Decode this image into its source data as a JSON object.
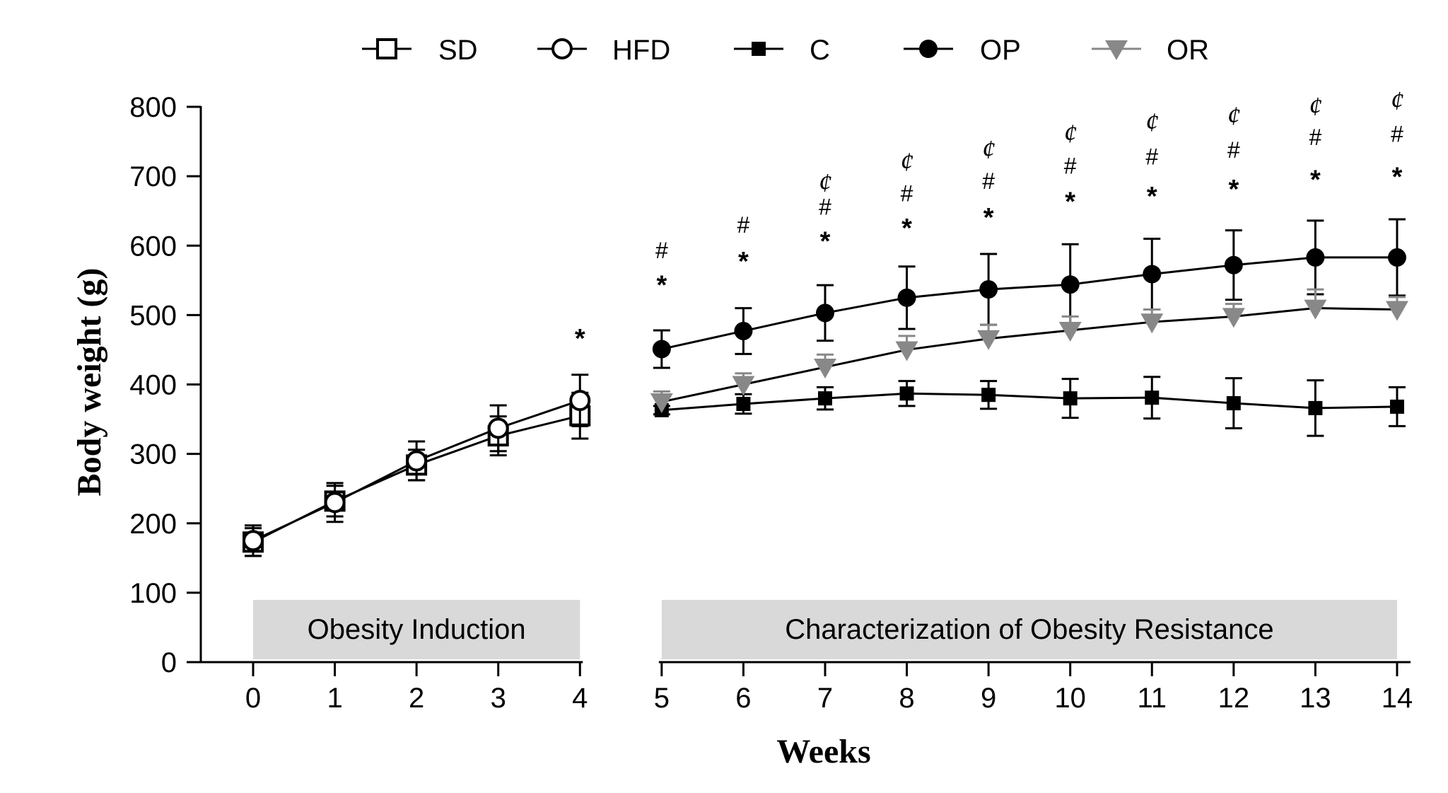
{
  "chart_data": {
    "type": "line",
    "xlabel": "Weeks",
    "ylabel": "Body weight (g)",
    "ylim": [
      0,
      800
    ],
    "yticks": [
      0,
      100,
      200,
      300,
      400,
      500,
      600,
      700,
      800
    ],
    "xticks": [
      0,
      1,
      2,
      3,
      4,
      5,
      6,
      7,
      8,
      9,
      10,
      11,
      12,
      13,
      14
    ],
    "bands": [
      {
        "label": "Obesity Induction",
        "from": 0,
        "to": 4
      },
      {
        "label": "Characterization of Obesity Resistance",
        "from": 5,
        "to": 14
      }
    ],
    "series": [
      {
        "name": "SD",
        "marker": "open-square",
        "color": "#000000",
        "x": [
          0,
          1,
          2,
          3,
          4
        ],
        "values": [
          173,
          232,
          284,
          326,
          355
        ],
        "err": [
          20,
          22,
          22,
          28,
          33
        ]
      },
      {
        "name": "HFD",
        "marker": "open-circle",
        "color": "#000000",
        "x": [
          0,
          1,
          2,
          3,
          4
        ],
        "values": [
          175,
          230,
          290,
          337,
          377
        ],
        "err": [
          22,
          28,
          28,
          33,
          37
        ]
      },
      {
        "name": "C",
        "marker": "filled-square",
        "color": "#000000",
        "x": [
          5,
          6,
          7,
          8,
          9,
          10,
          11,
          12,
          13,
          14
        ],
        "values": [
          363,
          372,
          380,
          387,
          385,
          380,
          381,
          373,
          366,
          368
        ],
        "err": [
          6,
          14,
          16,
          18,
          20,
          28,
          30,
          36,
          40,
          28
        ]
      },
      {
        "name": "OP",
        "marker": "filled-circle",
        "color": "#000000",
        "x": [
          5,
          6,
          7,
          8,
          9,
          10,
          11,
          12,
          13,
          14
        ],
        "values": [
          451,
          477,
          503,
          525,
          537,
          544,
          559,
          572,
          583,
          583
        ],
        "err": [
          27,
          33,
          40,
          45,
          51,
          58,
          51,
          50,
          53,
          55
        ]
      },
      {
        "name": "OR",
        "marker": "filled-triangle-down",
        "color": "#888888",
        "x": [
          5,
          6,
          7,
          8,
          9,
          10,
          11,
          12,
          13,
          14
        ],
        "values": [
          375,
          400,
          425,
          450,
          466,
          478,
          490,
          498,
          510,
          508
        ],
        "err": [
          15,
          16,
          18,
          20,
          20,
          20,
          18,
          18,
          27,
          18
        ]
      }
    ],
    "annotations": [
      {
        "x": 4,
        "y": 478,
        "text": "*"
      },
      {
        "x": 5,
        "y": 555,
        "text": "*"
      },
      {
        "x": 5,
        "y": 592,
        "text": "#"
      },
      {
        "x": 6,
        "y": 589,
        "text": "*"
      },
      {
        "x": 6,
        "y": 629,
        "text": "#"
      },
      {
        "x": 7,
        "y": 618,
        "text": "*"
      },
      {
        "x": 7,
        "y": 655,
        "text": "#"
      },
      {
        "x": 7,
        "y": 690,
        "text": "¢"
      },
      {
        "x": 8,
        "y": 637,
        "text": "*"
      },
      {
        "x": 8,
        "y": 674,
        "text": "#"
      },
      {
        "x": 8,
        "y": 720,
        "text": "¢"
      },
      {
        "x": 9,
        "y": 652,
        "text": "*"
      },
      {
        "x": 9,
        "y": 692,
        "text": "#"
      },
      {
        "x": 9,
        "y": 738,
        "text": "¢"
      },
      {
        "x": 10,
        "y": 675,
        "text": "*"
      },
      {
        "x": 10,
        "y": 714,
        "text": "#"
      },
      {
        "x": 10,
        "y": 761,
        "text": "¢"
      },
      {
        "x": 11,
        "y": 683,
        "text": "*"
      },
      {
        "x": 11,
        "y": 727,
        "text": "#"
      },
      {
        "x": 11,
        "y": 777,
        "text": "¢"
      },
      {
        "x": 12,
        "y": 693,
        "text": "*"
      },
      {
        "x": 12,
        "y": 737,
        "text": "#"
      },
      {
        "x": 12,
        "y": 786,
        "text": "¢"
      },
      {
        "x": 13,
        "y": 707,
        "text": "*"
      },
      {
        "x": 13,
        "y": 755,
        "text": "#"
      },
      {
        "x": 13,
        "y": 800,
        "text": "¢"
      },
      {
        "x": 14,
        "y": 711,
        "text": "*"
      },
      {
        "x": 14,
        "y": 760,
        "text": "#"
      },
      {
        "x": 14,
        "y": 808,
        "text": "¢"
      }
    ],
    "legend": {
      "position": "top",
      "entries": [
        "SD",
        "HFD",
        "C",
        "OP",
        "OR"
      ]
    }
  }
}
